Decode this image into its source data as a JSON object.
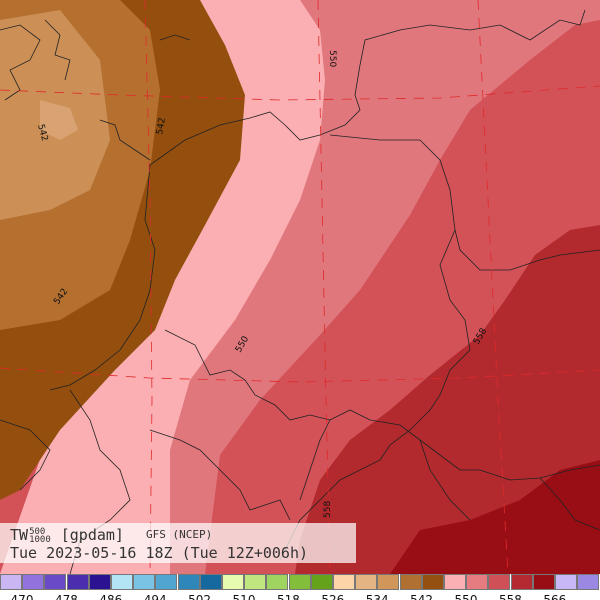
{
  "caption": {
    "var": "TW",
    "sup": "500",
    "sub": "1000",
    "unit": "[gpdam]",
    "model": "GFS (NCEP)",
    "datetime": "Tue 2023-05-16 18Z (Tue 12Z+006h)"
  },
  "contour_labels": [
    "550",
    "542",
    "542",
    "542",
    "550",
    "558",
    "558"
  ],
  "legend": {
    "colors": [
      "#c9b6f2",
      "#9272dc",
      "#6a4ac7",
      "#4a2eae",
      "#2a1290",
      "#b2e4f6",
      "#7ac3e4",
      "#50a6d0",
      "#2f86b8",
      "#16699e",
      "#e6fbb0",
      "#c0e680",
      "#a0d460",
      "#82be3a",
      "#64a21c",
      "#fcd4a8",
      "#e4b482",
      "#d0965a",
      "#b07032",
      "#935010",
      "#fbb0b4",
      "#e67c80",
      "#d05058",
      "#b42a30",
      "#980c14",
      "#c8b8f8",
      "#9a88e2"
    ],
    "ticks": [
      "470",
      "478",
      "486",
      "494",
      "502",
      "510",
      "518",
      "526",
      "534",
      "542",
      "550",
      "558",
      "566"
    ]
  }
}
